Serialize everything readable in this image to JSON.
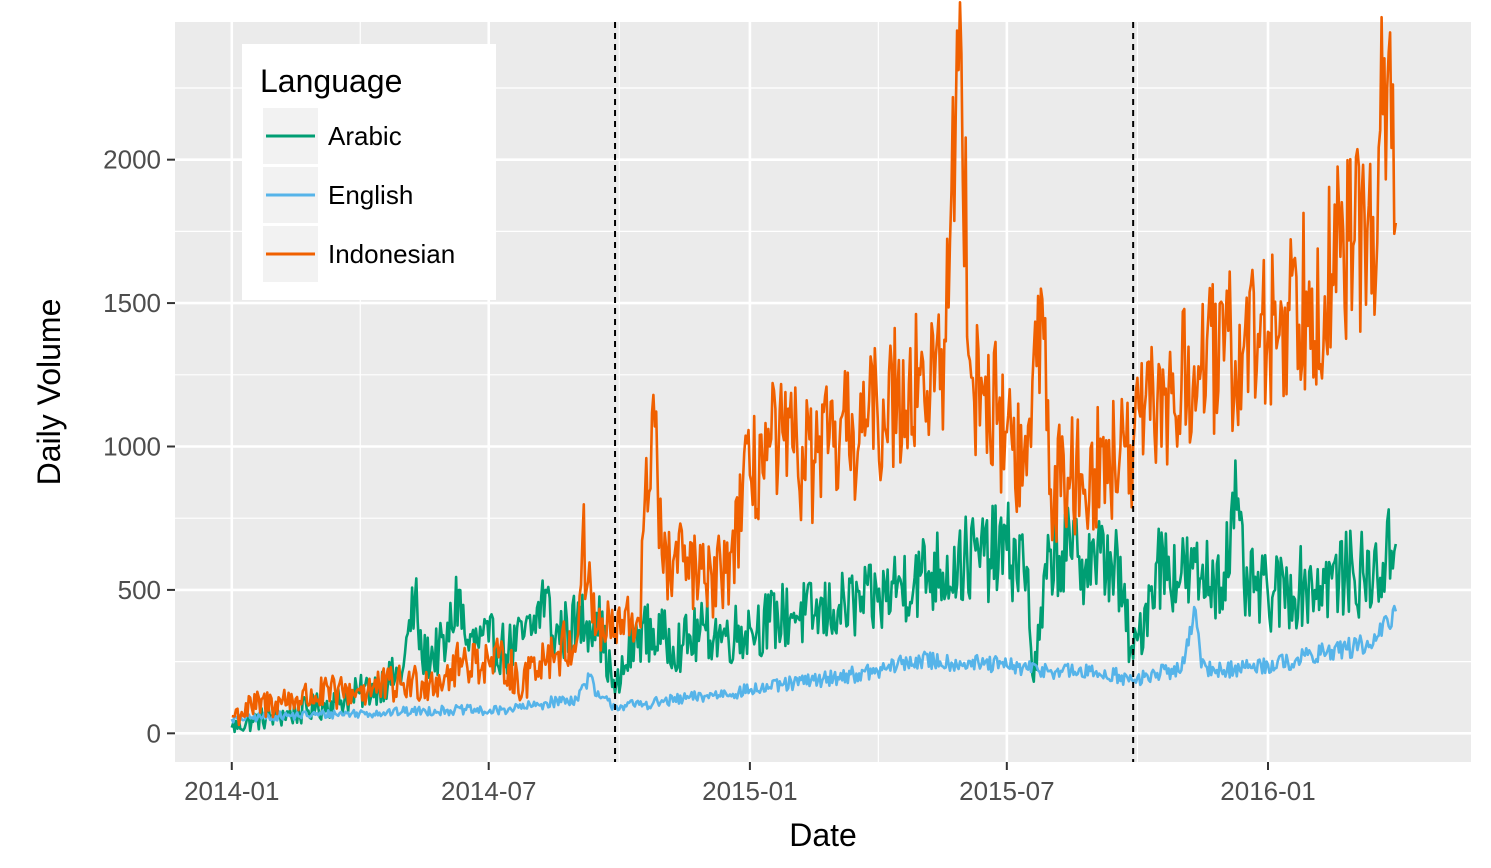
{
  "chart_data": {
    "type": "line",
    "title": "",
    "xlabel": "Date",
    "ylabel": "Daily Volume",
    "x_ticks": [
      "2014-01",
      "2014-07",
      "2015-01",
      "2015-07",
      "2016-01"
    ],
    "x_tick_dates": [
      "2014-01-01",
      "2014-07-01",
      "2015-01-01",
      "2015-07-01",
      "2016-01-01"
    ],
    "xlim": [
      "2013-11-22",
      "2016-05-23"
    ],
    "y_ticks": [
      0,
      500,
      1000,
      1500,
      2000
    ],
    "ylim": [
      -100,
      2480
    ],
    "grid": true,
    "vlines": {
      "dates": [
        "2014-09-28",
        "2015-09-28"
      ],
      "style": "dashed",
      "color": "#000000"
    },
    "legend": {
      "title": "Language",
      "position": "top-left"
    },
    "series": [
      {
        "name": "Arabic",
        "color": "#009E73",
        "points": [
          [
            "2014-01-01",
            20
          ],
          [
            "2014-01-15",
            45
          ],
          [
            "2014-02-01",
            60
          ],
          [
            "2014-02-15",
            70
          ],
          [
            "2014-03-01",
            90
          ],
          [
            "2014-03-15",
            110
          ],
          [
            "2014-04-01",
            140
          ],
          [
            "2014-04-15",
            170
          ],
          [
            "2014-05-01",
            210
          ],
          [
            "2014-05-10",
            470
          ],
          [
            "2014-05-15",
            260
          ],
          [
            "2014-06-01",
            300
          ],
          [
            "2014-06-10",
            500
          ],
          [
            "2014-06-15",
            310
          ],
          [
            "2014-07-01",
            320
          ],
          [
            "2014-07-15",
            290
          ],
          [
            "2014-08-01",
            360
          ],
          [
            "2014-08-10",
            500
          ],
          [
            "2014-08-15",
            340
          ],
          [
            "2014-09-01",
            380
          ],
          [
            "2014-09-15",
            420
          ],
          [
            "2014-09-28",
            140
          ],
          [
            "2014-10-15",
            360
          ],
          [
            "2014-11-01",
            330
          ],
          [
            "2014-11-15",
            310
          ],
          [
            "2014-12-01",
            360
          ],
          [
            "2014-12-15",
            340
          ],
          [
            "2015-01-01",
            370
          ],
          [
            "2015-01-15",
            390
          ],
          [
            "2015-02-01",
            420
          ],
          [
            "2015-02-15",
            410
          ],
          [
            "2015-03-01",
            430
          ],
          [
            "2015-03-15",
            450
          ],
          [
            "2015-04-01",
            460
          ],
          [
            "2015-04-15",
            520
          ],
          [
            "2015-05-01",
            550
          ],
          [
            "2015-05-15",
            570
          ],
          [
            "2015-06-01",
            600
          ],
          [
            "2015-06-15",
            620
          ],
          [
            "2015-07-01",
            640
          ],
          [
            "2015-07-15",
            580
          ],
          [
            "2015-07-20",
            180
          ],
          [
            "2015-08-01",
            640
          ],
          [
            "2015-08-15",
            620
          ],
          [
            "2015-09-01",
            610
          ],
          [
            "2015-09-15",
            600
          ],
          [
            "2015-09-28",
            260
          ],
          [
            "2015-10-15",
            600
          ],
          [
            "2015-11-01",
            560
          ],
          [
            "2015-11-15",
            540
          ],
          [
            "2015-12-01",
            560
          ],
          [
            "2015-12-10",
            780
          ],
          [
            "2015-12-15",
            520
          ],
          [
            "2016-01-01",
            480
          ],
          [
            "2016-01-15",
            500
          ],
          [
            "2016-02-01",
            520
          ],
          [
            "2016-02-15",
            540
          ],
          [
            "2016-03-01",
            560
          ],
          [
            "2016-03-15",
            540
          ],
          [
            "2016-03-31",
            660
          ]
        ]
      },
      {
        "name": "English",
        "color": "#56B4E9",
        "points": [
          [
            "2014-01-01",
            50
          ],
          [
            "2014-01-15",
            55
          ],
          [
            "2014-02-01",
            60
          ],
          [
            "2014-02-15",
            62
          ],
          [
            "2014-03-01",
            65
          ],
          [
            "2014-03-15",
            68
          ],
          [
            "2014-04-01",
            70
          ],
          [
            "2014-04-15",
            72
          ],
          [
            "2014-05-01",
            75
          ],
          [
            "2014-05-15",
            78
          ],
          [
            "2014-06-01",
            80
          ],
          [
            "2014-06-15",
            82
          ],
          [
            "2014-07-01",
            75
          ],
          [
            "2014-07-15",
            85
          ],
          [
            "2014-08-01",
            95
          ],
          [
            "2014-08-15",
            110
          ],
          [
            "2014-09-01",
            120
          ],
          [
            "2014-09-10",
            200
          ],
          [
            "2014-09-15",
            130
          ],
          [
            "2014-09-28",
            95
          ],
          [
            "2014-10-15",
            100
          ],
          [
            "2014-11-01",
            110
          ],
          [
            "2014-11-15",
            120
          ],
          [
            "2014-12-01",
            130
          ],
          [
            "2014-12-15",
            140
          ],
          [
            "2015-01-01",
            150
          ],
          [
            "2015-01-15",
            160
          ],
          [
            "2015-02-01",
            175
          ],
          [
            "2015-02-15",
            185
          ],
          [
            "2015-03-01",
            195
          ],
          [
            "2015-03-15",
            205
          ],
          [
            "2015-04-01",
            215
          ],
          [
            "2015-04-15",
            240
          ],
          [
            "2015-05-01",
            255
          ],
          [
            "2015-05-15",
            250
          ],
          [
            "2015-06-01",
            245
          ],
          [
            "2015-06-15",
            240
          ],
          [
            "2015-07-01",
            235
          ],
          [
            "2015-07-15",
            225
          ],
          [
            "2015-08-01",
            220
          ],
          [
            "2015-08-15",
            215
          ],
          [
            "2015-09-01",
            210
          ],
          [
            "2015-09-15",
            205
          ],
          [
            "2015-09-28",
            180
          ],
          [
            "2015-10-15",
            210
          ],
          [
            "2015-11-01",
            220
          ],
          [
            "2015-11-10",
            440
          ],
          [
            "2015-11-15",
            230
          ],
          [
            "2015-12-01",
            220
          ],
          [
            "2015-12-15",
            230
          ],
          [
            "2016-01-01",
            240
          ],
          [
            "2016-01-15",
            250
          ],
          [
            "2016-02-01",
            270
          ],
          [
            "2016-02-15",
            290
          ],
          [
            "2016-03-01",
            300
          ],
          [
            "2016-03-15",
            310
          ],
          [
            "2016-03-31",
            425
          ]
        ]
      },
      {
        "name": "Indonesian",
        "color": "#F06000",
        "points": [
          [
            "2014-01-01",
            60
          ],
          [
            "2014-01-15",
            90
          ],
          [
            "2014-02-01",
            110
          ],
          [
            "2014-02-15",
            120
          ],
          [
            "2014-03-01",
            130
          ],
          [
            "2014-03-15",
            140
          ],
          [
            "2014-04-01",
            150
          ],
          [
            "2014-04-15",
            160
          ],
          [
            "2014-05-01",
            170
          ],
          [
            "2014-05-15",
            180
          ],
          [
            "2014-06-01",
            200
          ],
          [
            "2014-06-15",
            260
          ],
          [
            "2014-07-01",
            250
          ],
          [
            "2014-07-15",
            240
          ],
          [
            "2014-07-25",
            150
          ],
          [
            "2014-08-01",
            250
          ],
          [
            "2014-08-15",
            280
          ],
          [
            "2014-09-01",
            320
          ],
          [
            "2014-09-05",
            670
          ],
          [
            "2014-09-15",
            360
          ],
          [
            "2014-09-28",
            360
          ],
          [
            "2014-10-15",
            400
          ],
          [
            "2014-10-25",
            1180
          ],
          [
            "2014-11-01",
            560
          ],
          [
            "2014-11-15",
            600
          ],
          [
            "2014-12-01",
            520
          ],
          [
            "2014-12-15",
            560
          ],
          [
            "2015-01-01",
            900
          ],
          [
            "2015-01-15",
            1000
          ],
          [
            "2015-02-01",
            980
          ],
          [
            "2015-02-15",
            950
          ],
          [
            "2015-03-01",
            1000
          ],
          [
            "2015-03-15",
            1050
          ],
          [
            "2015-04-01",
            1100
          ],
          [
            "2015-04-15",
            1200
          ],
          [
            "2015-05-01",
            1250
          ],
          [
            "2015-05-15",
            1200
          ],
          [
            "2015-05-30",
            2370
          ],
          [
            "2015-06-05",
            1300
          ],
          [
            "2015-06-15",
            1180
          ],
          [
            "2015-07-01",
            1050
          ],
          [
            "2015-07-15",
            900
          ],
          [
            "2015-07-25",
            1550
          ],
          [
            "2015-08-01",
            850
          ],
          [
            "2015-08-15",
            900
          ],
          [
            "2015-09-01",
            920
          ],
          [
            "2015-09-15",
            950
          ],
          [
            "2015-09-28",
            1000
          ],
          [
            "2015-10-15",
            1150
          ],
          [
            "2015-11-01",
            1200
          ],
          [
            "2015-11-15",
            1280
          ],
          [
            "2015-12-01",
            1300
          ],
          [
            "2015-12-15",
            1350
          ],
          [
            "2016-01-01",
            1400
          ],
          [
            "2016-01-15",
            1500
          ],
          [
            "2016-02-01",
            1550
          ],
          [
            "2016-02-15",
            1600
          ],
          [
            "2016-03-01",
            1700
          ],
          [
            "2016-03-15",
            1800
          ],
          [
            "2016-03-25",
            2250
          ],
          [
            "2016-03-31",
            1780
          ]
        ]
      }
    ]
  }
}
